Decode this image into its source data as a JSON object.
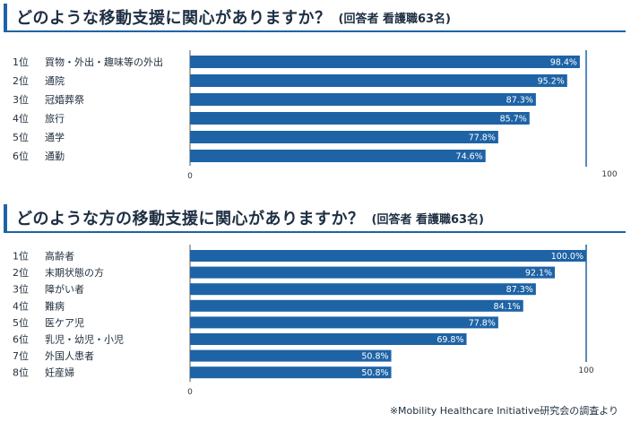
{
  "colors": {
    "bar": "#1e63a6",
    "accent": "#1e63a6",
    "text": "#1d2c3c"
  },
  "chart_data": [
    {
      "type": "bar",
      "orientation": "horizontal",
      "title": "どのような移動支援に関心がありますか？",
      "subtitle": "(回答者 看護職63名)",
      "ranks": [
        "1位",
        "2位",
        "3位",
        "4位",
        "5位",
        "6位"
      ],
      "categories": [
        "買物・外出・趣味等の外出",
        "通院",
        "冠婚葬祭",
        "旅行",
        "通学",
        "通勤"
      ],
      "values": [
        98.4,
        95.2,
        87.3,
        85.7,
        77.8,
        74.6
      ],
      "value_labels": [
        "98.4%",
        "95.2%",
        "87.3%",
        "85.7%",
        "77.8%",
        "74.6%"
      ],
      "xlim": [
        0,
        100
      ],
      "xticks": [
        "0",
        "100"
      ],
      "reference_line": 100,
      "grid": false
    },
    {
      "type": "bar",
      "orientation": "horizontal",
      "title": "どのような方の移動支援に関心がありますか？",
      "subtitle": "(回答者 看護職63名)",
      "ranks": [
        "1位",
        "2位",
        "3位",
        "4位",
        "5位",
        "6位",
        "7位",
        "8位"
      ],
      "categories": [
        "高齢者",
        "末期状態の方",
        "障がい者",
        "難病",
        "医ケア児",
        "乳児・幼児・小児",
        "外国人患者",
        "妊産婦"
      ],
      "values": [
        100.0,
        92.1,
        87.3,
        84.1,
        77.8,
        69.8,
        50.8,
        50.8
      ],
      "value_labels": [
        "100.0%",
        "92.1%",
        "87.3%",
        "84.1%",
        "77.8%",
        "69.8%",
        "50.8%",
        "50.8%"
      ],
      "xlim": [
        0,
        100
      ],
      "xticks": [
        "0",
        "100"
      ],
      "reference_line": 100,
      "grid": false
    }
  ],
  "footnote": "※Mobility Healthcare Initiative研究会の調査より"
}
